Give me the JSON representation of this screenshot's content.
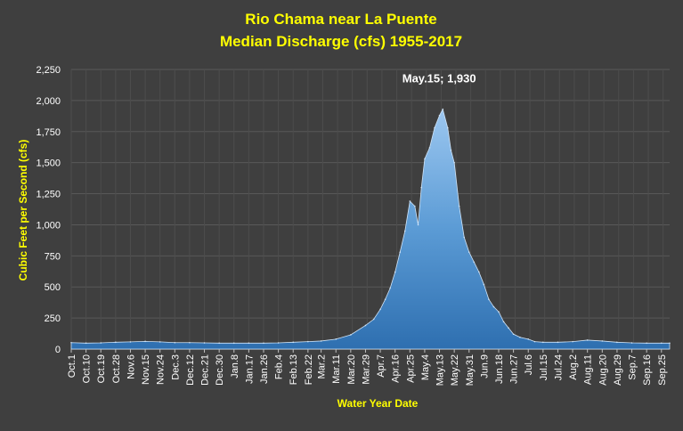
{
  "chart_data": {
    "type": "area",
    "title": "Rio Chama near La Puente",
    "subtitle": "Median Discharge (cfs) 1955-2017",
    "xlabel": "Water Year Date",
    "ylabel": "Cubic Feet per Second (cfs)",
    "ylim": [
      0,
      2250
    ],
    "yticks": [
      0,
      250,
      500,
      750,
      1000,
      1250,
      1500,
      1750,
      2000,
      2250
    ],
    "ytick_labels": [
      "0",
      "250",
      "500",
      "750",
      "1,000",
      "1,250",
      "1,500",
      "1,750",
      "2,000",
      "2,250"
    ],
    "grid": true,
    "series_color": "#5b9bd5",
    "xtick_labels": [
      "Oct.1",
      "Oct.10",
      "Oct.19",
      "Oct.28",
      "Nov.6",
      "Nov.15",
      "Nov.24",
      "Dec.3",
      "Dec.12",
      "Dec.21",
      "Dec.30",
      "Jan.8",
      "Jan.17",
      "Jan.26",
      "Feb.4",
      "Feb.13",
      "Feb.22",
      "Mar.2",
      "Mar.11",
      "Mar.20",
      "Mar.29",
      "Apr.7",
      "Apr.16",
      "Apr.25",
      "May.4",
      "May.13",
      "May.22",
      "May.31",
      "Jun.9",
      "Jun.18",
      "Jun.27",
      "Jul.6",
      "Jul.15",
      "Jul.24",
      "Aug.2",
      "Aug.11",
      "Aug.20",
      "Aug.29",
      "Sep.7",
      "Sep.16",
      "Sep.25"
    ],
    "x": [
      "Oct.1",
      "Oct.10",
      "Oct.19",
      "Oct.28",
      "Nov.6",
      "Nov.15",
      "Nov.24",
      "Dec.3",
      "Dec.12",
      "Dec.21",
      "Dec.30",
      "Jan.8",
      "Jan.17",
      "Jan.26",
      "Feb.4",
      "Feb.13",
      "Feb.22",
      "Mar.2",
      "Mar.11",
      "Mar.20",
      "Mar.29",
      "Apr.3",
      "Apr.7",
      "Apr.10",
      "Apr.13",
      "Apr.16",
      "Apr.19",
      "Apr.22",
      "Apr.25",
      "Apr.28",
      "Apr.30",
      "May.2",
      "May.4",
      "May.7",
      "May.10",
      "May.13",
      "May.15",
      "May.18",
      "May.20",
      "May.22",
      "May.25",
      "May.28",
      "May.31",
      "Jun.3",
      "Jun.6",
      "Jun.9",
      "Jun.12",
      "Jun.15",
      "Jun.18",
      "Jun.21",
      "Jun.24",
      "Jun.27",
      "Jul.1",
      "Jul.6",
      "Jul.10",
      "Jul.15",
      "Jul.24",
      "Aug.2",
      "Aug.11",
      "Aug.20",
      "Aug.29",
      "Sep.7",
      "Sep.16",
      "Sep.25",
      "Sep.30"
    ],
    "values": [
      52,
      48,
      50,
      55,
      58,
      62,
      58,
      52,
      52,
      50,
      48,
      48,
      48,
      48,
      50,
      55,
      60,
      65,
      80,
      115,
      190,
      240,
      320,
      400,
      490,
      620,
      780,
      950,
      1190,
      1150,
      1000,
      1300,
      1530,
      1620,
      1780,
      1880,
      1930,
      1780,
      1600,
      1500,
      1150,
      900,
      780,
      700,
      620,
      520,
      400,
      340,
      300,
      220,
      170,
      120,
      95,
      80,
      60,
      55,
      55,
      60,
      72,
      65,
      55,
      50,
      48,
      48,
      48
    ]
  },
  "annotation": {
    "text": "May.15; 1,930",
    "x": "May.15",
    "y": 1930
  }
}
